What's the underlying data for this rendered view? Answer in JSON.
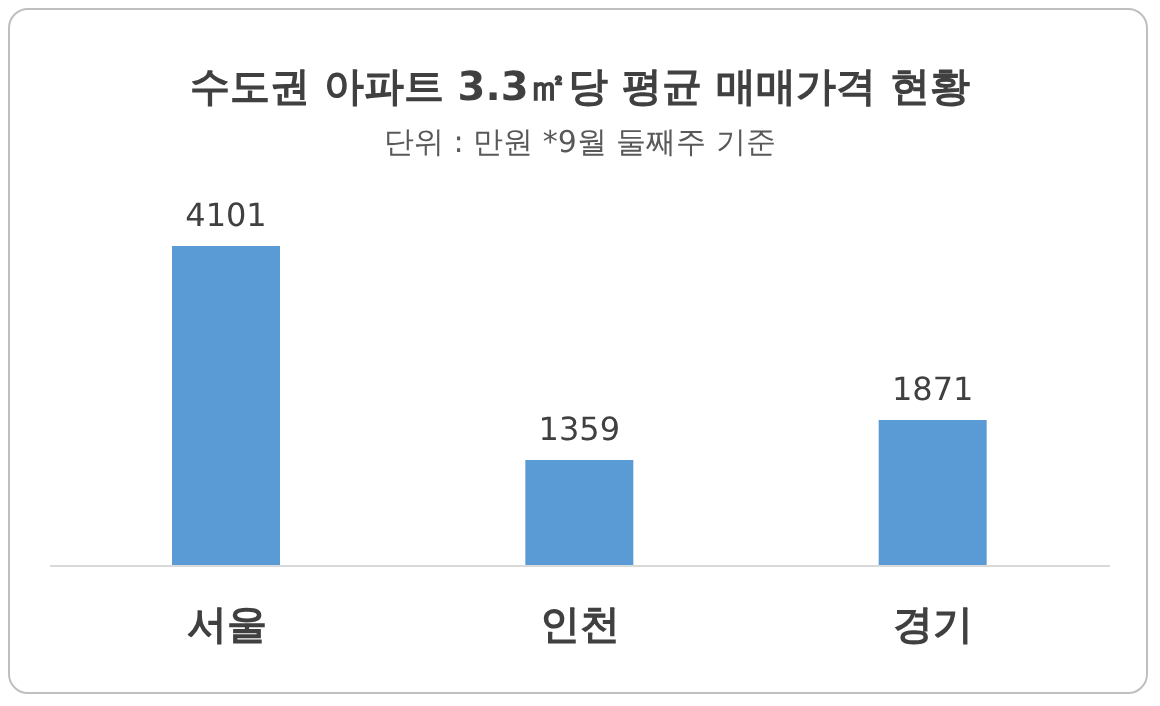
{
  "chart_data": {
    "type": "bar",
    "title": "수도권 아파트 3.3㎡당 평균 매매가격 현황",
    "subtitle": "단위 : 만원 *9월 둘째주 기준",
    "categories": [
      "서울",
      "인천",
      "경기"
    ],
    "values": [
      4101,
      1359,
      1871
    ],
    "color": "#5b9bd5",
    "data_labels": true,
    "grid": false,
    "legend": false
  }
}
